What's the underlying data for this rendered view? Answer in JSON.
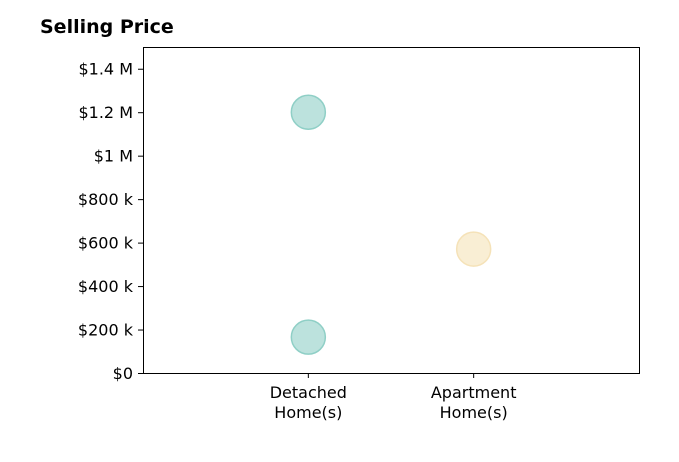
{
  "chart_data": {
    "type": "scatter",
    "title": "Selling Price",
    "xlabel": "",
    "ylabel": "",
    "categories": [
      [
        "Detached",
        "Home(s)"
      ],
      [
        "Apartment",
        "Home(s)"
      ]
    ],
    "x_range": [
      -1,
      2
    ],
    "ylim": [
      0,
      1500000
    ],
    "y_ticks": [
      {
        "value": 0,
        "label": "$0"
      },
      {
        "value": 200000,
        "label": "$200 k"
      },
      {
        "value": 400000,
        "label": "$400 k"
      },
      {
        "value": 600000,
        "label": "$600 k"
      },
      {
        "value": 800000,
        "label": "$800 k"
      },
      {
        "value": 1000000,
        "label": "$1 M"
      },
      {
        "value": 1200000,
        "label": "$1.2 M"
      },
      {
        "value": 1400000,
        "label": "$1.4 M"
      }
    ],
    "points": [
      {
        "category": 0,
        "y": 1200000,
        "color": "#8fcfc6"
      },
      {
        "category": 0,
        "y": 165000,
        "color": "#8fcfc6"
      },
      {
        "category": 1,
        "y": 570000,
        "color": "#f5e2b8"
      }
    ],
    "grid": false,
    "legend": "none"
  }
}
